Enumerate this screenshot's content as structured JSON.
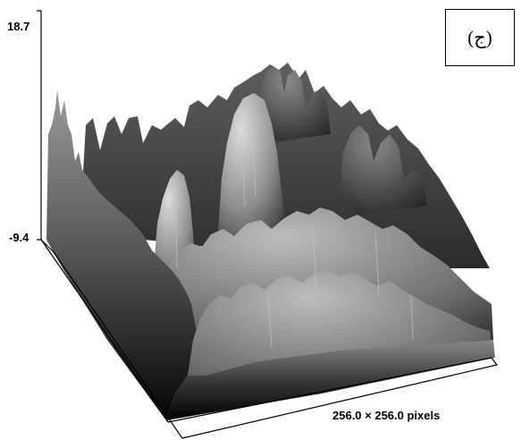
{
  "figure": {
    "panel_label": "(ج)",
    "z_axis": {
      "max_label": "18.7",
      "min_label": "-9.4"
    },
    "base_dimensions_label": "256.0 × 256.0 pixels"
  }
}
